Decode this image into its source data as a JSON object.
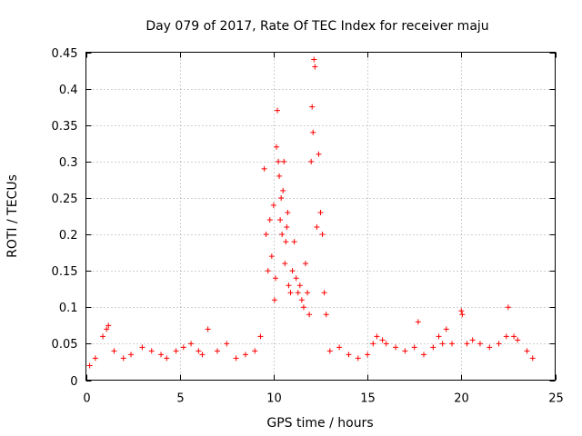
{
  "chart_data": {
    "type": "scatter",
    "title": "Day 079 of 2017, Rate Of TEC Index for receiver maju",
    "xlabel": "GPS time / hours",
    "ylabel": "ROTI / TECUs",
    "xlim": [
      0,
      25
    ],
    "ylim": [
      0,
      0.45
    ],
    "xticks": [
      "0",
      "5",
      "10",
      "15",
      "20",
      "25"
    ],
    "yticks": [
      "0",
      "0.05",
      "0.1",
      "0.15",
      "0.2",
      "0.25",
      "0.3",
      "0.35",
      "0.4",
      "0.45"
    ],
    "grid": true,
    "marker": "+",
    "series": [
      {
        "name": "ROTI",
        "color": "#ff0000",
        "x": [
          0.2,
          0.5,
          0.9,
          1.1,
          1.2,
          1.5,
          2.0,
          2.4,
          3.0,
          3.5,
          4.0,
          4.3,
          4.8,
          5.2,
          5.6,
          6.0,
          6.2,
          6.5,
          7.0,
          7.5,
          8.0,
          8.5,
          9.0,
          9.3,
          9.5,
          9.6,
          9.7,
          9.8,
          9.9,
          10.0,
          10.05,
          10.1,
          10.15,
          10.2,
          10.25,
          10.3,
          10.35,
          10.4,
          10.45,
          10.5,
          10.55,
          10.6,
          10.65,
          10.7,
          10.75,
          10.8,
          10.9,
          11.0,
          11.1,
          11.2,
          11.3,
          11.4,
          11.5,
          11.6,
          11.7,
          11.8,
          11.9,
          12.0,
          12.05,
          12.1,
          12.15,
          12.2,
          12.3,
          12.4,
          12.5,
          12.6,
          12.7,
          12.8,
          13.0,
          13.5,
          14.0,
          14.5,
          15.0,
          15.3,
          15.5,
          15.8,
          16.0,
          16.5,
          17.0,
          17.5,
          17.7,
          18.0,
          18.5,
          18.8,
          19.0,
          19.2,
          19.5,
          20.0,
          20.05,
          20.3,
          20.6,
          21.0,
          21.5,
          22.0,
          22.4,
          22.5,
          22.8,
          23.0,
          23.5,
          23.8
        ],
        "y": [
          0.02,
          0.03,
          0.06,
          0.07,
          0.075,
          0.04,
          0.03,
          0.035,
          0.045,
          0.04,
          0.035,
          0.03,
          0.04,
          0.045,
          0.05,
          0.04,
          0.035,
          0.07,
          0.04,
          0.05,
          0.03,
          0.035,
          0.04,
          0.06,
          0.29,
          0.2,
          0.15,
          0.22,
          0.17,
          0.24,
          0.11,
          0.14,
          0.32,
          0.37,
          0.3,
          0.28,
          0.22,
          0.25,
          0.2,
          0.26,
          0.3,
          0.16,
          0.19,
          0.21,
          0.23,
          0.13,
          0.12,
          0.15,
          0.19,
          0.14,
          0.12,
          0.13,
          0.11,
          0.1,
          0.16,
          0.12,
          0.09,
          0.3,
          0.375,
          0.34,
          0.44,
          0.43,
          0.21,
          0.31,
          0.23,
          0.2,
          0.12,
          0.09,
          0.04,
          0.045,
          0.035,
          0.03,
          0.035,
          0.05,
          0.06,
          0.055,
          0.05,
          0.045,
          0.04,
          0.045,
          0.08,
          0.035,
          0.045,
          0.06,
          0.05,
          0.07,
          0.05,
          0.095,
          0.09,
          0.05,
          0.055,
          0.05,
          0.045,
          0.05,
          0.06,
          0.1,
          0.06,
          0.055,
          0.04,
          0.03
        ]
      }
    ]
  }
}
